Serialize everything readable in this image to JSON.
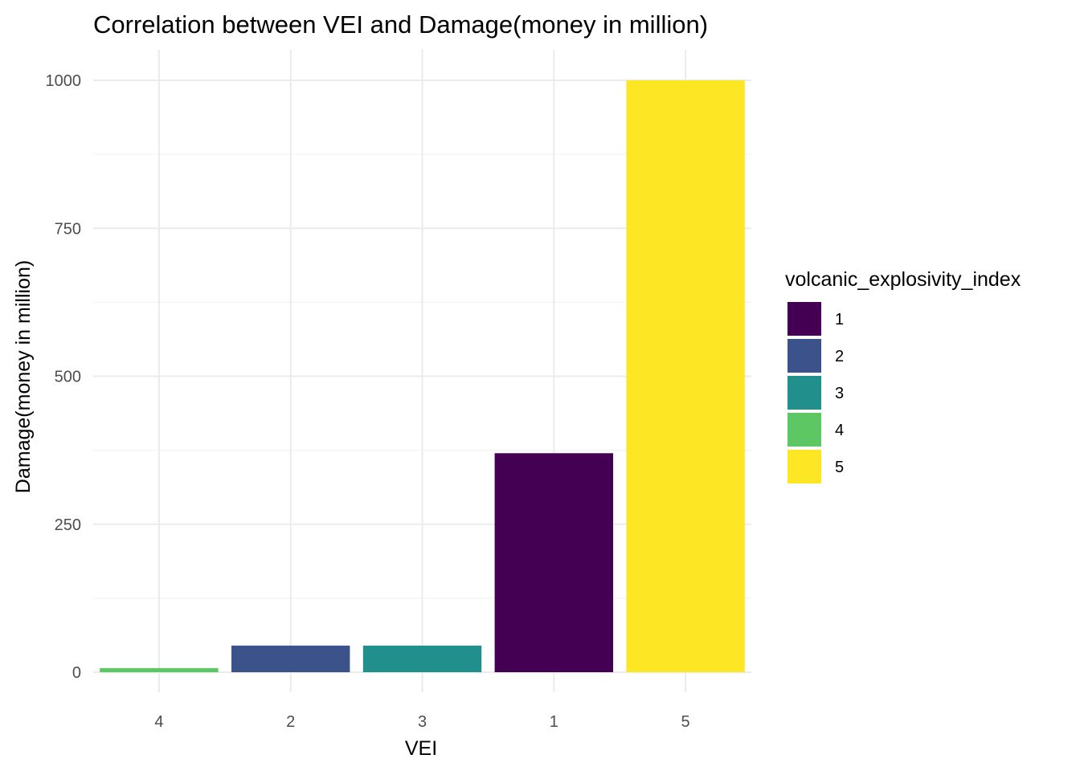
{
  "chart_data": {
    "type": "bar",
    "title": "Correlation between VEI and Damage(money in million)",
    "xlabel": "VEI",
    "ylabel": "Damage(money in million)",
    "categories": [
      "4",
      "2",
      "3",
      "1",
      "5"
    ],
    "values": [
      7,
      45,
      45,
      370,
      1000
    ],
    "ylim": [
      -30,
      1050
    ],
    "yticks": [
      0,
      250,
      500,
      750,
      1000
    ],
    "grid": true,
    "legend": {
      "title": "volcanic_explosivity_index",
      "placement": "right",
      "items": [
        {
          "label": "1",
          "color": "#440154"
        },
        {
          "label": "2",
          "color": "#3B528B"
        },
        {
          "label": "3",
          "color": "#21908C"
        },
        {
          "label": "4",
          "color": "#5DC863"
        },
        {
          "label": "5",
          "color": "#FDE725"
        }
      ]
    },
    "bar_colors": [
      "#5DC863",
      "#3B528B",
      "#21908C",
      "#440154",
      "#FDE725"
    ]
  }
}
